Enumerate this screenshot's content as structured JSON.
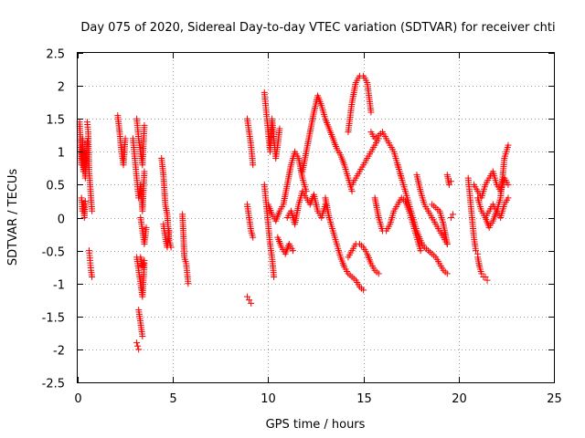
{
  "chart_data": {
    "type": "scatter",
    "title": "Day 075 of 2020, Sidereal Day-to-day VTEC variation (SDTVAR) for receiver chti",
    "xlabel": "GPS time / hours",
    "ylabel": "SDTVAR / TECUs",
    "xlim": [
      0,
      25
    ],
    "ylim": [
      -2.5,
      2.5
    ],
    "xticks": [
      0,
      5,
      10,
      15,
      20,
      25
    ],
    "xtick_labels": [
      "0",
      "5",
      "10",
      "15",
      "20",
      "25"
    ],
    "yticks": [
      -2.5,
      -2,
      -1.5,
      -1,
      -0.5,
      0,
      0.5,
      1,
      1.5,
      2,
      2.5
    ],
    "ytick_labels": [
      "-2.5",
      "-2",
      "-1.5",
      "-1",
      "-0.5",
      "0",
      "0.5",
      "1",
      "1.5",
      "2",
      "2.5"
    ],
    "grid": true,
    "marker": "+",
    "color": "#ff0000",
    "series": [
      {
        "name": "SDTVAR",
        "tracks": [
          {
            "x": [
              0.1,
              0.15,
              0.2,
              0.25,
              0.3,
              0.35,
              0.4,
              0.45,
              0.5
            ],
            "y": [
              1.45,
              1.1,
              0.8,
              1.2,
              0.7,
              1.0,
              0.6,
              0.9,
              1.15
            ]
          },
          {
            "x": [
              0.2,
              0.25,
              0.3,
              0.35,
              0.4
            ],
            "y": [
              0.3,
              0.1,
              0.2,
              0.0,
              0.25
            ]
          },
          {
            "x": [
              0.5,
              0.55,
              0.6,
              0.65,
              0.7,
              0.75
            ],
            "y": [
              1.45,
              1.3,
              0.7,
              0.5,
              0.3,
              0.1
            ]
          },
          {
            "x": [
              0.6,
              0.65,
              0.7,
              0.75
            ],
            "y": [
              -0.5,
              -0.65,
              -0.8,
              -0.9
            ]
          },
          {
            "x": [
              2.1,
              2.2,
              2.3,
              2.4,
              2.5
            ],
            "y": [
              1.55,
              1.3,
              1.0,
              0.8,
              1.2
            ]
          },
          {
            "x": [
              2.9,
              3.0,
              3.1,
              3.2,
              3.3,
              3.4,
              3.5
            ],
            "y": [
              1.2,
              0.9,
              0.6,
              0.3,
              0.5,
              0.1,
              0.7
            ]
          },
          {
            "x": [
              3.1,
              3.2,
              3.3,
              3.4,
              3.5
            ],
            "y": [
              1.5,
              1.2,
              1.0,
              0.8,
              1.4
            ]
          },
          {
            "x": [
              3.3,
              3.4,
              3.5,
              3.6
            ],
            "y": [
              0.0,
              -0.2,
              -0.4,
              -0.15
            ]
          },
          {
            "x": [
              3.1,
              3.2,
              3.3,
              3.4,
              3.5
            ],
            "y": [
              -0.6,
              -0.8,
              -1.0,
              -1.2,
              -0.7
            ]
          },
          {
            "x": [
              3.2,
              3.3,
              3.4
            ],
            "y": [
              -1.4,
              -1.6,
              -1.8
            ]
          },
          {
            "x": [
              3.1,
              3.15,
              3.2
            ],
            "y": [
              -1.9,
              -1.95,
              -2.0
            ]
          },
          {
            "x": [
              3.3,
              3.4,
              3.5
            ],
            "y": [
              -0.6,
              -0.75,
              -0.65
            ]
          },
          {
            "x": [
              4.4,
              4.5,
              4.6,
              4.7,
              4.8,
              4.9
            ],
            "y": [
              0.9,
              0.65,
              0.2,
              0.05,
              -0.35,
              -0.45
            ]
          },
          {
            "x": [
              4.5,
              4.6,
              4.7,
              4.8
            ],
            "y": [
              -0.1,
              -0.3,
              -0.45,
              -0.2
            ]
          },
          {
            "x": [
              5.5,
              5.6,
              5.7,
              5.8
            ],
            "y": [
              0.05,
              -0.6,
              -0.7,
              -1.0
            ]
          },
          {
            "x": [
              8.9,
              9.0,
              9.1,
              9.2
            ],
            "y": [
              1.5,
              1.3,
              1.1,
              0.8
            ]
          },
          {
            "x": [
              8.9,
              9.0,
              9.1,
              9.2
            ],
            "y": [
              0.2,
              0.0,
              -0.2,
              -0.3
            ]
          },
          {
            "x": [
              8.9,
              9.0,
              9.1
            ],
            "y": [
              -1.2,
              -1.25,
              -1.3
            ]
          },
          {
            "x": [
              9.8,
              9.9,
              10.0,
              10.1,
              10.2,
              10.3,
              10.4,
              10.5,
              10.6
            ],
            "y": [
              1.9,
              1.6,
              1.3,
              1.0,
              1.5,
              1.2,
              0.9,
              1.1,
              1.35
            ]
          },
          {
            "x": [
              9.8,
              9.9,
              10.0,
              10.1,
              10.2,
              10.3
            ],
            "y": [
              0.5,
              0.2,
              -0.1,
              -0.4,
              -0.6,
              -0.9
            ]
          },
          {
            "x": [
              10.0,
              10.2,
              10.4,
              10.6,
              10.8,
              11.0,
              11.2,
              11.4,
              11.6,
              11.8,
              12.0
            ],
            "y": [
              0.2,
              0.05,
              -0.05,
              0.1,
              0.2,
              0.5,
              0.8,
              1.0,
              0.9,
              0.6,
              0.4
            ]
          },
          {
            "x": [
              11.0,
              11.2,
              11.4,
              11.6,
              11.8,
              12.0,
              12.2,
              12.4,
              12.6,
              12.8,
              13.0
            ],
            "y": [
              0.0,
              0.1,
              -0.1,
              0.2,
              0.4,
              0.3,
              0.2,
              0.35,
              0.1,
              0.0,
              0.2
            ]
          },
          {
            "x": [
              11.8,
              12.0,
              12.2,
              12.4,
              12.6,
              12.8,
              13.0,
              13.2,
              13.4,
              13.6,
              13.8,
              14.0,
              14.2,
              14.4
            ],
            "y": [
              0.7,
              1.0,
              1.3,
              1.6,
              1.85,
              1.7,
              1.5,
              1.35,
              1.2,
              1.05,
              0.95,
              0.8,
              0.6,
              0.4
            ]
          },
          {
            "x": [
              10.5,
              10.7,
              10.9,
              11.1,
              11.3
            ],
            "y": [
              -0.3,
              -0.45,
              -0.55,
              -0.4,
              -0.5
            ]
          },
          {
            "x": [
              13.0,
              13.2,
              13.4,
              13.6,
              13.8,
              14.0,
              14.2,
              14.4,
              14.6,
              14.8,
              15.0
            ],
            "y": [
              0.3,
              0.0,
              -0.2,
              -0.4,
              -0.6,
              -0.75,
              -0.85,
              -0.9,
              -0.95,
              -1.05,
              -1.1
            ]
          },
          {
            "x": [
              14.2,
              14.4,
              14.6,
              14.8,
              15.0,
              15.2,
              15.4,
              15.6,
              15.8
            ],
            "y": [
              -0.6,
              -0.5,
              -0.4,
              -0.4,
              -0.45,
              -0.55,
              -0.7,
              -0.8,
              -0.85
            ]
          },
          {
            "x": [
              14.2,
              14.4,
              14.6,
              14.8,
              15.0,
              15.2,
              15.4
            ],
            "y": [
              1.3,
              1.75,
              2.05,
              2.15,
              2.15,
              2.05,
              1.6
            ]
          },
          {
            "x": [
              15.4,
              15.6,
              15.8,
              16.0,
              16.2,
              16.4,
              16.6,
              16.8,
              17.0
            ],
            "y": [
              1.3,
              1.2,
              1.25,
              1.3,
              1.2,
              1.1,
              1.0,
              0.8,
              0.6
            ]
          },
          {
            "x": [
              14.4,
              14.6,
              14.8,
              15.0,
              15.2,
              15.4,
              15.6,
              15.8
            ],
            "y": [
              0.5,
              0.6,
              0.7,
              0.8,
              0.9,
              1.0,
              1.1,
              1.2
            ]
          },
          {
            "x": [
              15.6,
              15.8,
              16.0,
              16.2,
              16.4,
              16.6,
              16.8,
              17.0,
              17.2,
              17.4,
              17.6,
              17.8,
              18.0
            ],
            "y": [
              0.3,
              0.0,
              -0.2,
              -0.2,
              -0.1,
              0.1,
              0.2,
              0.3,
              0.25,
              0.1,
              -0.1,
              -0.3,
              -0.5
            ]
          },
          {
            "x": [
              16.8,
              17.0,
              17.2,
              17.4,
              17.6,
              17.8,
              18.0,
              18.2,
              18.4,
              18.6,
              18.8,
              19.0,
              19.2,
              19.4
            ],
            "y": [
              0.8,
              0.6,
              0.4,
              0.2,
              0.0,
              -0.2,
              -0.35,
              -0.45,
              -0.5,
              -0.55,
              -0.6,
              -0.7,
              -0.8,
              -0.85
            ]
          },
          {
            "x": [
              17.8,
              18.0,
              18.2,
              18.4,
              18.6,
              18.8,
              19.0,
              19.2,
              19.4
            ],
            "y": [
              0.65,
              0.4,
              0.2,
              0.1,
              0.0,
              -0.1,
              -0.2,
              -0.3,
              -0.4
            ]
          },
          {
            "x": [
              18.6,
              18.8,
              19.0,
              19.2,
              19.4
            ],
            "y": [
              0.2,
              0.15,
              0.1,
              -0.1,
              -0.4
            ]
          },
          {
            "x": [
              19.4,
              19.5,
              19.6
            ],
            "y": [
              0.65,
              0.5,
              0.55
            ]
          },
          {
            "x": [
              19.6,
              19.7
            ],
            "y": [
              0.0,
              0.05
            ]
          },
          {
            "x": [
              20.5,
              20.6,
              20.7,
              20.8,
              20.9,
              21.0
            ],
            "y": [
              0.6,
              0.3,
              0.0,
              -0.3,
              -0.5,
              -0.55
            ]
          },
          {
            "x": [
              21.0,
              21.1,
              21.2,
              21.3,
              21.4,
              21.5
            ],
            "y": [
              -0.6,
              -0.75,
              -0.85,
              -0.9,
              -0.9,
              -0.95
            ]
          },
          {
            "x": [
              20.8,
              21.0,
              21.2,
              21.4,
              21.6,
              21.8,
              22.0,
              22.2,
              22.4,
              22.6
            ],
            "y": [
              0.5,
              0.4,
              0.3,
              0.5,
              0.6,
              0.7,
              0.5,
              0.4,
              0.6,
              0.5
            ]
          },
          {
            "x": [
              21.0,
              21.2,
              21.4,
              21.6,
              21.8,
              22.0,
              22.2,
              22.4,
              22.6
            ],
            "y": [
              0.3,
              0.1,
              0.0,
              0.1,
              0.2,
              0.1,
              0.0,
              0.2,
              0.3
            ]
          },
          {
            "x": [
              21.4,
              21.6,
              21.8,
              22.0,
              22.2,
              22.4,
              22.6
            ],
            "y": [
              0.0,
              -0.15,
              -0.05,
              0.1,
              0.3,
              0.9,
              1.1
            ]
          }
        ]
      }
    ]
  }
}
